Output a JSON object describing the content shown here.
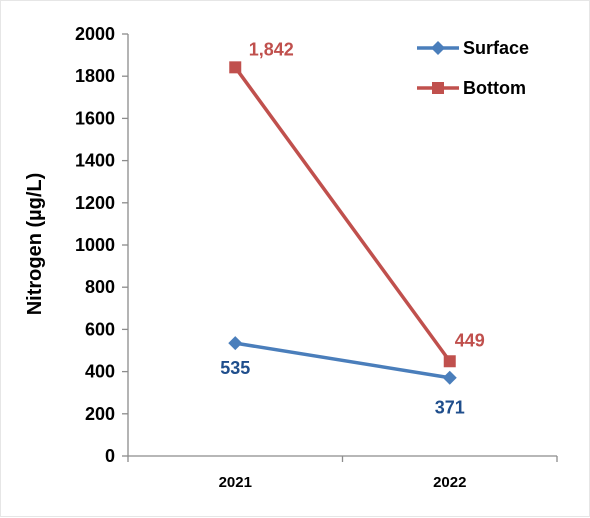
{
  "chart_data": {
    "type": "line",
    "title": "",
    "xlabel": "",
    "ylabel": "Nitrogen  (µg/L)",
    "categories": [
      "2021",
      "2022"
    ],
    "ylim": [
      0,
      2000
    ],
    "yticks": [
      "0",
      "200",
      "400",
      "600",
      "800",
      "1000",
      "1200",
      "1400",
      "1600",
      "1800",
      "2000"
    ],
    "grid": false,
    "legend_position": "top-right",
    "series": [
      {
        "name": "Surface",
        "values": [
          535,
          371
        ],
        "labels": [
          "535",
          "371"
        ],
        "color": "#4a7ebb",
        "label_color": "#1f4e8c",
        "marker": "diamond"
      },
      {
        "name": "Bottom",
        "values": [
          1842,
          449
        ],
        "labels": [
          "1,842",
          "449"
        ],
        "color": "#c0504d",
        "label_color": "#c0504d",
        "marker": "square"
      }
    ]
  }
}
